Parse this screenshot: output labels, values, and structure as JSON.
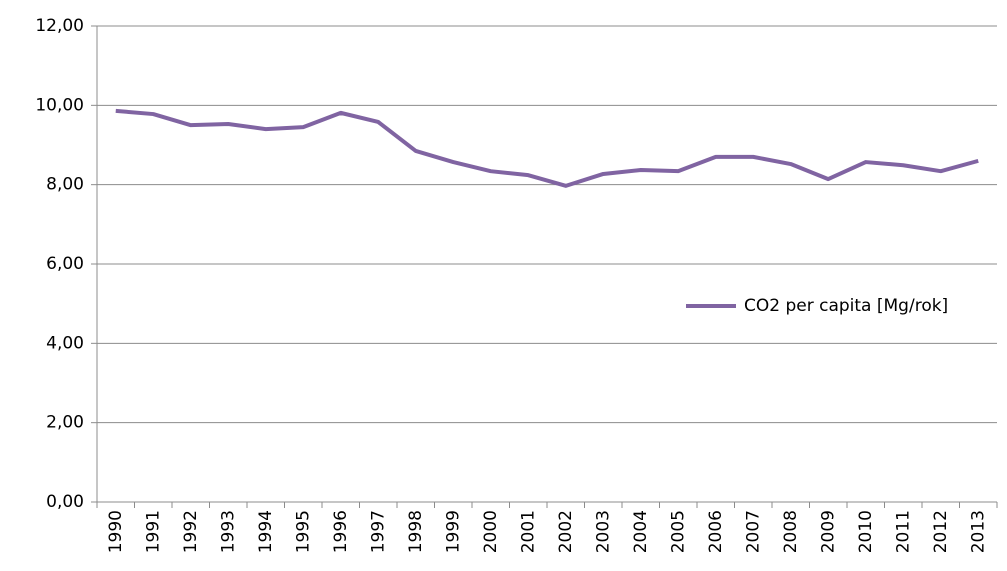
{
  "chart_data": {
    "type": "line",
    "categories": [
      "1990",
      "1991",
      "1992",
      "1993",
      "1994",
      "1995",
      "1996",
      "1997",
      "1998",
      "1999",
      "2000",
      "2001",
      "2002",
      "2003",
      "2004",
      "2005",
      "2006",
      "2007",
      "2008",
      "2009",
      "2010",
      "2011",
      "2012",
      "2013"
    ],
    "series": [
      {
        "name": "CO2 per capita [Mg/rok]",
        "color": "#8064a2",
        "values": [
          9.86,
          9.78,
          9.5,
          9.53,
          9.4,
          9.45,
          9.81,
          9.58,
          8.85,
          8.57,
          8.34,
          8.24,
          7.97,
          8.27,
          8.37,
          8.34,
          8.7,
          8.7,
          8.52,
          8.14,
          8.57,
          8.49,
          8.34,
          8.6
        ]
      }
    ],
    "ylim": [
      0,
      12
    ],
    "yticks": [
      {
        "value": 0,
        "label": "0,00"
      },
      {
        "value": 2,
        "label": "2,00"
      },
      {
        "value": 4,
        "label": "4,00"
      },
      {
        "value": 6,
        "label": "6,00"
      },
      {
        "value": 8,
        "label": "8,00"
      },
      {
        "value": 10,
        "label": "10,00"
      },
      {
        "value": 12,
        "label": "12,00"
      }
    ],
    "grid": true,
    "legend": "right"
  }
}
